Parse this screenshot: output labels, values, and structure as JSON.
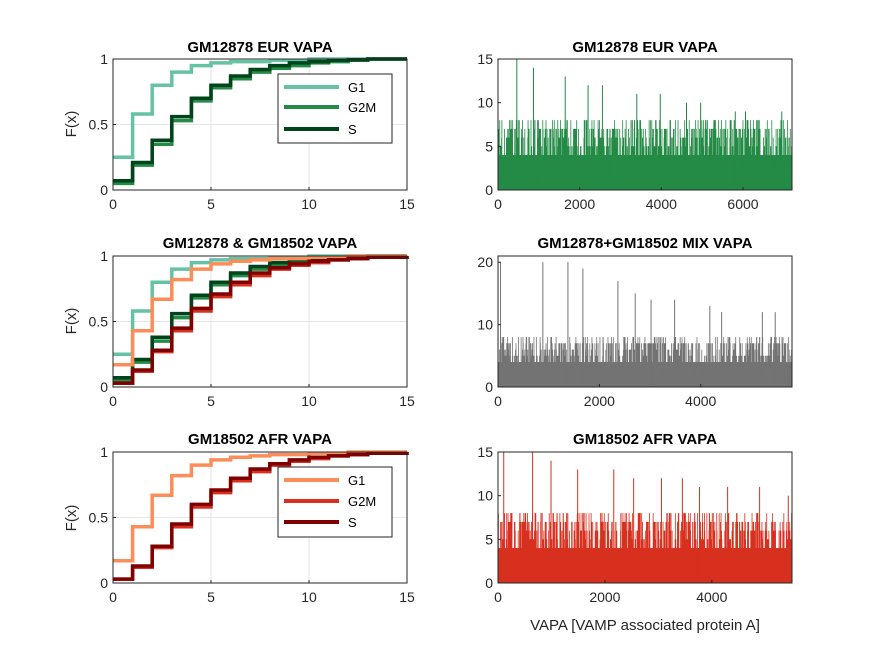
{
  "chart_data": [
    {
      "id": "ecdf_eur",
      "type": "line",
      "title": "GM12878 EUR VAPA",
      "xlabel": "",
      "ylabel": "F(x)",
      "xlim": [
        0,
        15
      ],
      "ylim": [
        0,
        1
      ],
      "xticks": [
        "0",
        "5",
        "10",
        "15"
      ],
      "yticks": [
        "0",
        "0.5",
        "1"
      ],
      "grid": true,
      "legend": "inside-top-right",
      "series": [
        {
          "name": "G1",
          "color": "#66c2a4",
          "step_x": [
            0,
            1,
            2,
            3,
            4,
            5,
            6,
            8,
            10,
            15
          ],
          "step_y": [
            0.25,
            0.58,
            0.8,
            0.9,
            0.95,
            0.97,
            0.98,
            0.99,
            1.0,
            1.0
          ]
        },
        {
          "name": "G2M",
          "color": "#238b45",
          "step_x": [
            0,
            1,
            2,
            3,
            4,
            5,
            6,
            7,
            8,
            9,
            10,
            11,
            12,
            13,
            15
          ],
          "step_y": [
            0.05,
            0.19,
            0.35,
            0.53,
            0.68,
            0.78,
            0.85,
            0.9,
            0.93,
            0.95,
            0.97,
            0.98,
            0.99,
            1.0,
            1.0
          ]
        },
        {
          "name": "S",
          "color": "#00441b",
          "step_x": [
            0,
            1,
            2,
            3,
            4,
            5,
            6,
            7,
            8,
            9,
            10,
            11,
            12,
            13,
            15
          ],
          "step_y": [
            0.07,
            0.21,
            0.38,
            0.56,
            0.7,
            0.8,
            0.87,
            0.92,
            0.95,
            0.97,
            0.98,
            0.99,
            0.995,
            1.0,
            1.0
          ]
        }
      ]
    },
    {
      "id": "bars_eur",
      "type": "bar",
      "title": "GM12878 EUR VAPA",
      "xlabel": "",
      "ylabel": "",
      "xlim": [
        0,
        7200
      ],
      "ylim": [
        0,
        15
      ],
      "xticks": [
        "0",
        "2000",
        "4000",
        "6000"
      ],
      "yticks": [
        "0",
        "5",
        "10",
        "15"
      ],
      "grid": false,
      "color": "#238b45",
      "n_cells": 7200,
      "typical_max": 8,
      "spike_values": [
        15,
        14,
        13,
        12,
        12,
        11,
        11,
        10,
        10,
        9,
        9,
        9
      ]
    },
    {
      "id": "ecdf_mix",
      "type": "line",
      "title": "GM12878 & GM18502 VAPA",
      "xlabel": "",
      "ylabel": "F(x)",
      "xlim": [
        0,
        15
      ],
      "ylim": [
        0,
        1
      ],
      "xticks": [
        "0",
        "5",
        "10",
        "15"
      ],
      "yticks": [
        "0",
        "0.5",
        "1"
      ],
      "grid": true,
      "series": [
        {
          "color": "#66c2a4",
          "step_x": [
            0,
            1,
            2,
            3,
            4,
            5,
            6,
            8,
            10,
            15
          ],
          "step_y": [
            0.25,
            0.58,
            0.8,
            0.9,
            0.95,
            0.97,
            0.98,
            0.99,
            1.0,
            1.0
          ]
        },
        {
          "color": "#238b45",
          "step_x": [
            0,
            1,
            2,
            3,
            4,
            5,
            6,
            7,
            8,
            9,
            10,
            11,
            12,
            13,
            15
          ],
          "step_y": [
            0.05,
            0.19,
            0.35,
            0.53,
            0.68,
            0.78,
            0.85,
            0.9,
            0.93,
            0.95,
            0.97,
            0.98,
            0.99,
            1.0,
            1.0
          ]
        },
        {
          "color": "#00441b",
          "step_x": [
            0,
            1,
            2,
            3,
            4,
            5,
            6,
            7,
            8,
            9,
            10,
            11,
            12,
            13,
            15
          ],
          "step_y": [
            0.07,
            0.21,
            0.38,
            0.56,
            0.7,
            0.8,
            0.87,
            0.92,
            0.95,
            0.97,
            0.98,
            0.99,
            0.995,
            1.0,
            1.0
          ]
        },
        {
          "color": "#fc8d59",
          "step_x": [
            0,
            1,
            2,
            3,
            4,
            5,
            6,
            7,
            8,
            10,
            12,
            15
          ],
          "step_y": [
            0.17,
            0.43,
            0.67,
            0.82,
            0.9,
            0.94,
            0.96,
            0.97,
            0.98,
            0.99,
            1.0,
            1.0
          ]
        },
        {
          "color": "#d7301f",
          "step_x": [
            0,
            1,
            2,
            3,
            4,
            5,
            6,
            7,
            8,
            9,
            10,
            11,
            12,
            13,
            15
          ],
          "step_y": [
            0.03,
            0.12,
            0.27,
            0.43,
            0.58,
            0.69,
            0.78,
            0.85,
            0.9,
            0.93,
            0.95,
            0.97,
            0.98,
            0.99,
            1.0
          ]
        },
        {
          "color": "#7f0000",
          "step_x": [
            0,
            1,
            2,
            3,
            4,
            5,
            6,
            7,
            8,
            9,
            10,
            11,
            12,
            13,
            15
          ],
          "step_y": [
            0.03,
            0.13,
            0.28,
            0.45,
            0.6,
            0.71,
            0.8,
            0.87,
            0.91,
            0.94,
            0.96,
            0.97,
            0.98,
            0.99,
            1.0
          ]
        }
      ]
    },
    {
      "id": "bars_mix",
      "type": "bar",
      "title": "GM12878+GM18502 MIX VAPA",
      "xlabel": "",
      "ylabel": "",
      "xlim": [
        0,
        5800
      ],
      "ylim": [
        0,
        21
      ],
      "xticks": [
        "0",
        "2000",
        "4000"
      ],
      "yticks": [
        "0",
        "10",
        "20"
      ],
      "grid": false,
      "color": "#737373",
      "n_cells": 5800,
      "typical_max": 8,
      "spike_values": [
        20,
        20,
        20,
        19,
        17,
        15,
        14,
        14,
        13,
        12,
        12,
        12
      ]
    },
    {
      "id": "ecdf_afr",
      "type": "line",
      "title": "GM18502 AFR VAPA",
      "xlabel": "",
      "ylabel": "F(x)",
      "xlim": [
        0,
        15
      ],
      "ylim": [
        0,
        1
      ],
      "xticks": [
        "0",
        "5",
        "10",
        "15"
      ],
      "yticks": [
        "0",
        "0.5",
        "1"
      ],
      "grid": true,
      "legend": "inside-top-right",
      "series": [
        {
          "name": "G1",
          "color": "#fc8d59",
          "step_x": [
            0,
            1,
            2,
            3,
            4,
            5,
            6,
            7,
            8,
            10,
            12,
            15
          ],
          "step_y": [
            0.17,
            0.43,
            0.67,
            0.82,
            0.9,
            0.94,
            0.96,
            0.97,
            0.98,
            0.99,
            1.0,
            1.0
          ]
        },
        {
          "name": "G2M",
          "color": "#d7301f",
          "step_x": [
            0,
            1,
            2,
            3,
            4,
            5,
            6,
            7,
            8,
            9,
            10,
            11,
            12,
            13,
            15
          ],
          "step_y": [
            0.03,
            0.12,
            0.27,
            0.43,
            0.58,
            0.69,
            0.78,
            0.85,
            0.9,
            0.93,
            0.95,
            0.97,
            0.98,
            0.99,
            1.0
          ]
        },
        {
          "name": "S",
          "color": "#7f0000",
          "step_x": [
            0,
            1,
            2,
            3,
            4,
            5,
            6,
            7,
            8,
            9,
            10,
            11,
            12,
            13,
            15
          ],
          "step_y": [
            0.03,
            0.13,
            0.28,
            0.45,
            0.6,
            0.71,
            0.8,
            0.87,
            0.91,
            0.94,
            0.96,
            0.97,
            0.98,
            0.99,
            1.0
          ]
        }
      ]
    },
    {
      "id": "bars_afr",
      "type": "bar",
      "title": "GM18502 AFR VAPA",
      "xlabel": "VAPA [VAMP associated protein A]",
      "ylabel": "",
      "xlim": [
        0,
        5500
      ],
      "ylim": [
        0,
        15
      ],
      "xticks": [
        "0",
        "2000",
        "4000"
      ],
      "yticks": [
        "0",
        "5",
        "10",
        "15"
      ],
      "grid": false,
      "color": "#d7301f",
      "n_cells": 5500,
      "typical_max": 8,
      "spike_values": [
        15,
        15,
        14,
        13,
        13,
        12,
        12,
        12,
        11,
        11,
        11,
        10
      ]
    }
  ]
}
